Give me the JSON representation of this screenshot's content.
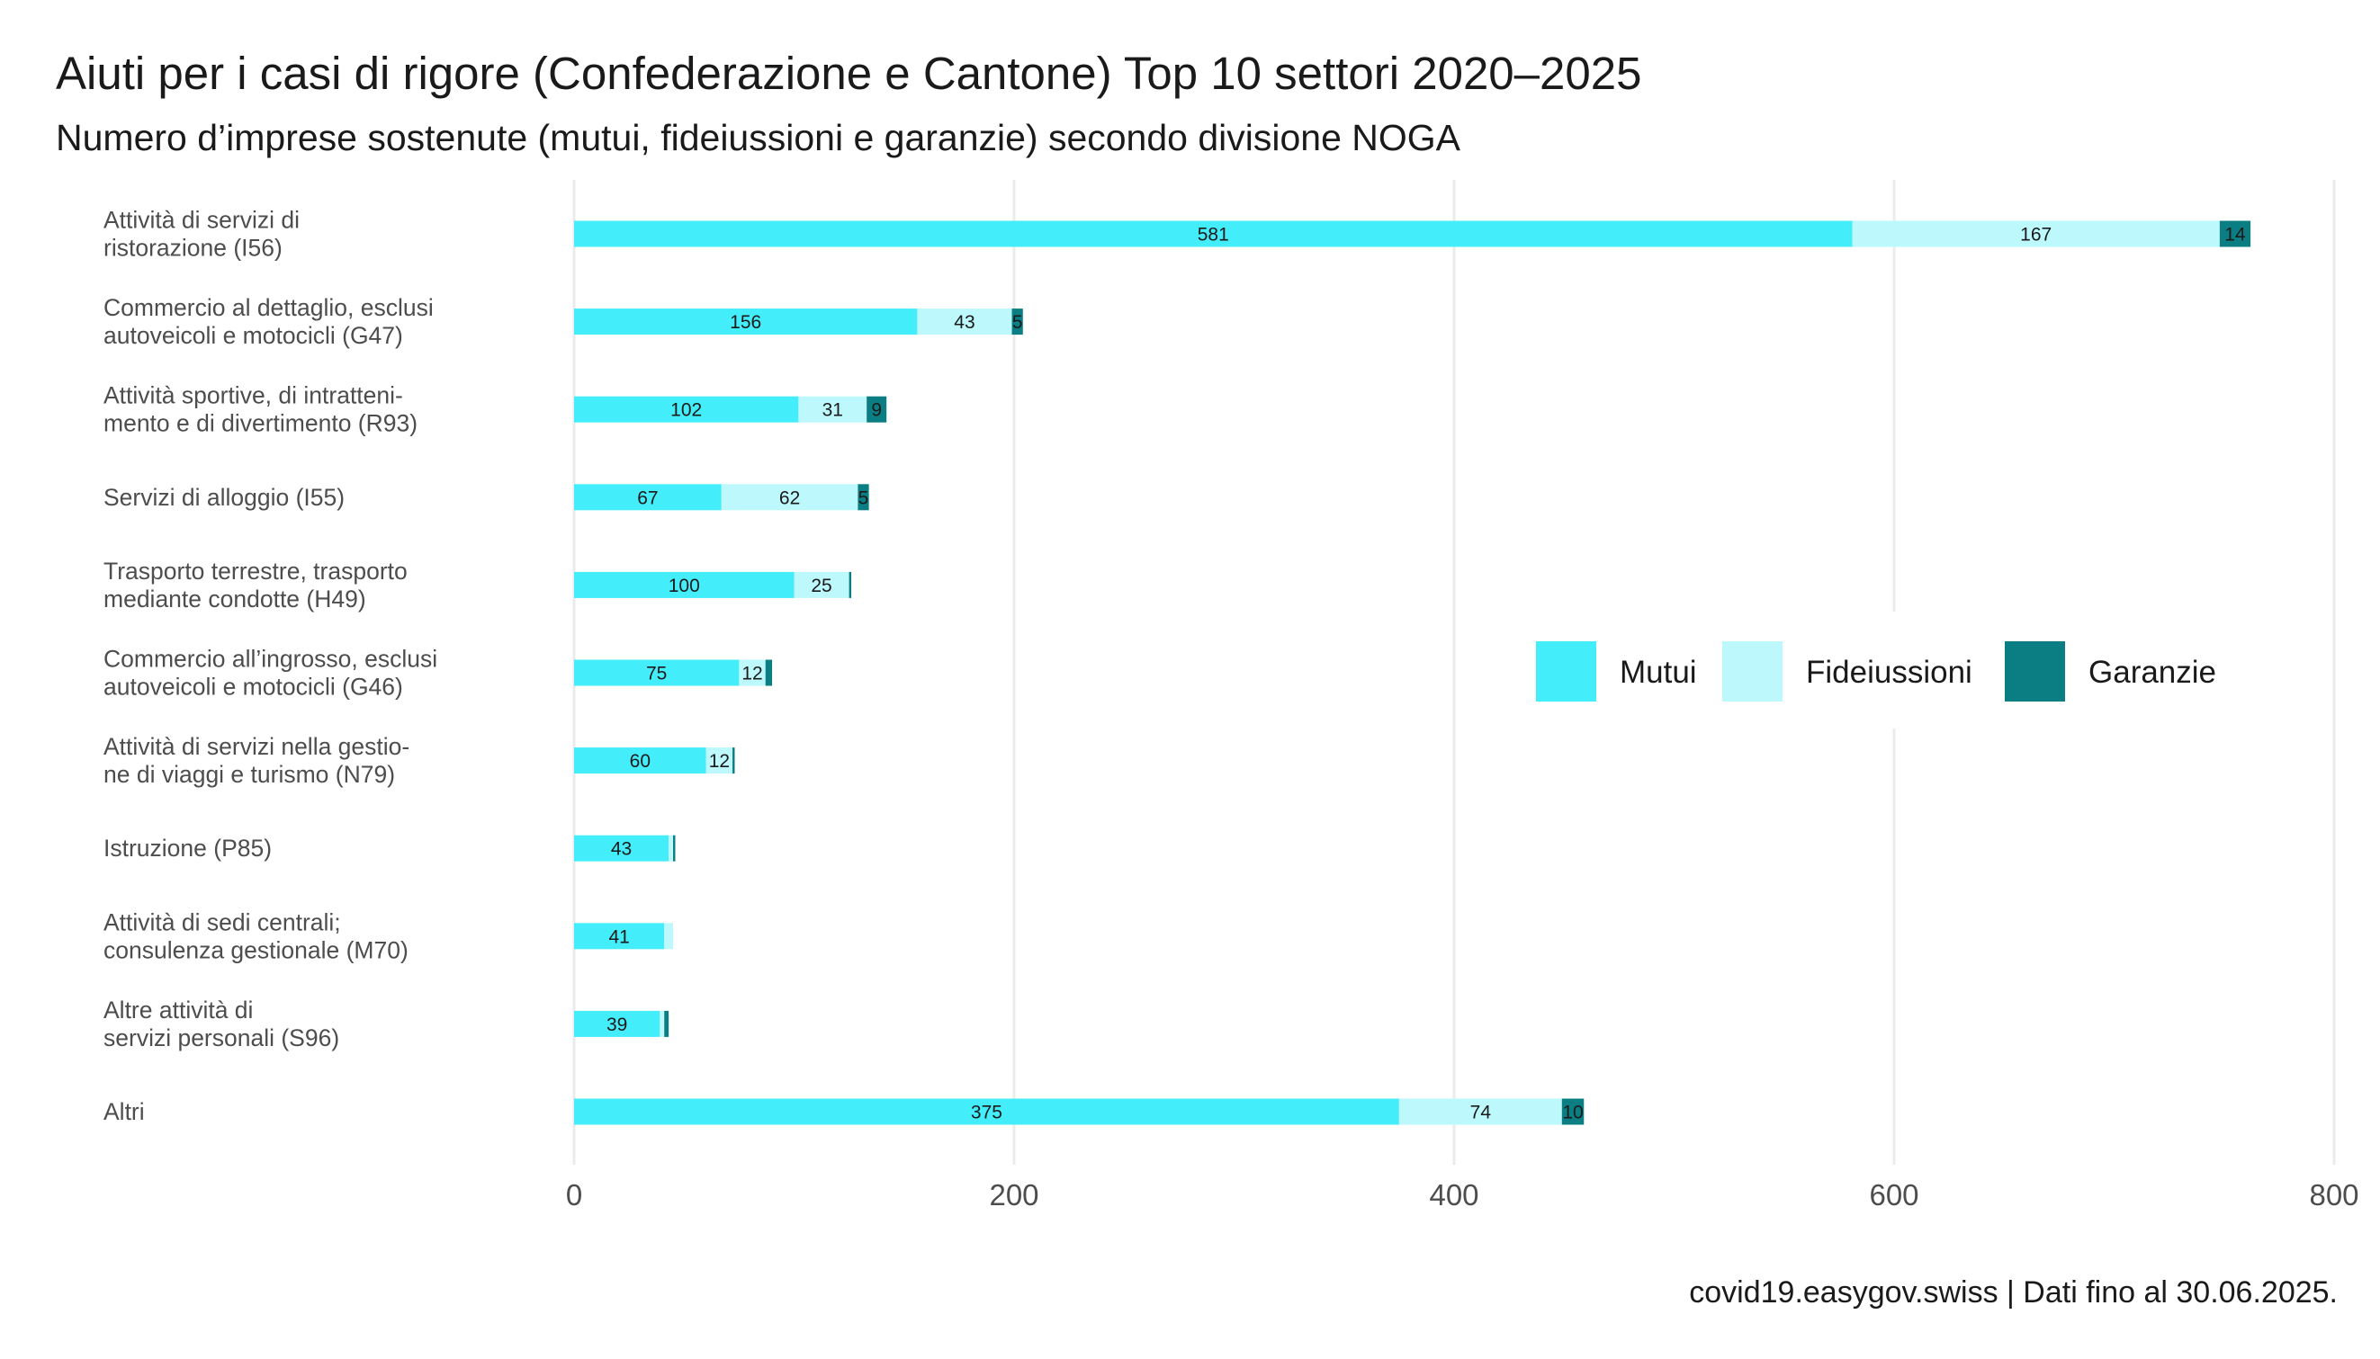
{
  "chart_data": {
    "type": "bar",
    "orientation": "horizontal",
    "stacked": true,
    "title": "Aiuti per i casi di rigore (Confederazione e Cantone) Top 10 settori 2020–2025",
    "subtitle": "Numero d’imprese sostenute (mutui, fideiussioni e garanzie) secondo divisione NOGA",
    "xlabel": "",
    "ylabel": "",
    "xlim": [
      0,
      800
    ],
    "xticks": [
      "0",
      "200",
      "400",
      "600",
      "800"
    ],
    "grid": "vertical",
    "legend_position": "right",
    "categories": [
      [
        "Attività di servizi di",
        "ristorazione (I56)"
      ],
      [
        "Commercio al dettaglio, esclusi",
        "autoveicoli e motocicli (G47)"
      ],
      [
        "Attività sportive, di intratteni-",
        "mento e di divertimento (R93)"
      ],
      [
        "Servizi di alloggio (I55)"
      ],
      [
        "Trasporto terrestre, trasporto",
        "mediante condotte (H49)"
      ],
      [
        "Commercio all’ingrosso, esclusi",
        "autoveicoli e motocicli (G46)"
      ],
      [
        "Attività di servizi nella gestio-",
        "ne di viaggi e turismo (N79)"
      ],
      [
        "Istruzione (P85)"
      ],
      [
        "Attività di sedi centrali;",
        "consulenza gestionale (M70)"
      ],
      [
        "Altre attività di",
        "servizi personali (S96)"
      ],
      [
        "Altri"
      ]
    ],
    "series": [
      {
        "name": "Mutui",
        "color": "#44EDFA",
        "values": [
          581,
          156,
          102,
          67,
          100,
          75,
          60,
          43,
          41,
          39,
          375
        ],
        "labels": [
          "581",
          "156",
          "102",
          "67",
          "100",
          "75",
          "60",
          "43",
          "41",
          "39",
          "375"
        ]
      },
      {
        "name": "Fideiussioni",
        "color": "#BDF8FC",
        "values": [
          167,
          43,
          31,
          62,
          25,
          12,
          12,
          2,
          4,
          2,
          74
        ],
        "labels": [
          "167",
          "43",
          "31",
          "62",
          "25",
          "12",
          "12",
          "",
          "",
          "",
          "74"
        ]
      },
      {
        "name": "Garanzie",
        "color": "#0B7E83",
        "values": [
          14,
          5,
          9,
          5,
          1,
          3,
          1,
          1,
          0,
          2,
          10
        ],
        "labels": [
          "14",
          "5",
          "9",
          "5",
          "",
          "",
          "",
          "",
          "",
          "",
          "10"
        ]
      }
    ],
    "caption": "covid19.easygov.swiss | Dati fino al 30.06.2025."
  }
}
